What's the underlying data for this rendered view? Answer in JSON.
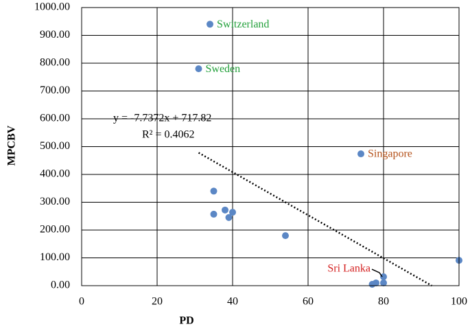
{
  "chart_data": {
    "type": "scatter",
    "xlabel": "PD",
    "ylabel": "MPCBV",
    "x": [
      34,
      31,
      74,
      35,
      38,
      35,
      40,
      39,
      54,
      100,
      80,
      80,
      78,
      77
    ],
    "values": [
      940,
      780,
      474,
      340,
      272,
      257,
      264,
      245,
      180,
      91,
      32,
      10,
      10,
      5
    ],
    "color": "#5b87c5",
    "xlim": [
      0,
      100
    ],
    "xticks": [
      0,
      20,
      40,
      60,
      80,
      100
    ],
    "ylim": [
      0,
      1000
    ],
    "yticks": [
      {
        "value": 0,
        "label": "0.00"
      },
      {
        "value": 100,
        "label": "100.00"
      },
      {
        "value": 200,
        "label": "200.00"
      },
      {
        "value": 300,
        "label": "300.00"
      },
      {
        "value": 400,
        "label": "400.00"
      },
      {
        "value": 500,
        "label": "500.00"
      },
      {
        "value": 600,
        "label": "600.00"
      },
      {
        "value": 700,
        "label": "700.00"
      },
      {
        "value": 800,
        "label": "800.00"
      },
      {
        "value": 900,
        "label": "900.00"
      },
      {
        "value": 1000,
        "label": "1000.00"
      }
    ],
    "grid": true,
    "trendline": {
      "equation": "y = -7.7372x + 717.82",
      "r_squared": "R² = 0.4062",
      "slope": -7.7372,
      "intercept": 717.82,
      "xlim": [
        31,
        92.8
      ]
    },
    "annotations": [
      {
        "text": "Switzerland",
        "point": 0,
        "color": "#22a03a",
        "side": "right"
      },
      {
        "text": "Sweden",
        "point": 1,
        "color": "#22a03a",
        "side": "right"
      },
      {
        "text": "Singapore",
        "point": 2,
        "color": "#b5521b",
        "side": "right"
      },
      {
        "text": "Sri Lanka",
        "point": 10,
        "color": "#d42020",
        "side": "left"
      }
    ]
  }
}
